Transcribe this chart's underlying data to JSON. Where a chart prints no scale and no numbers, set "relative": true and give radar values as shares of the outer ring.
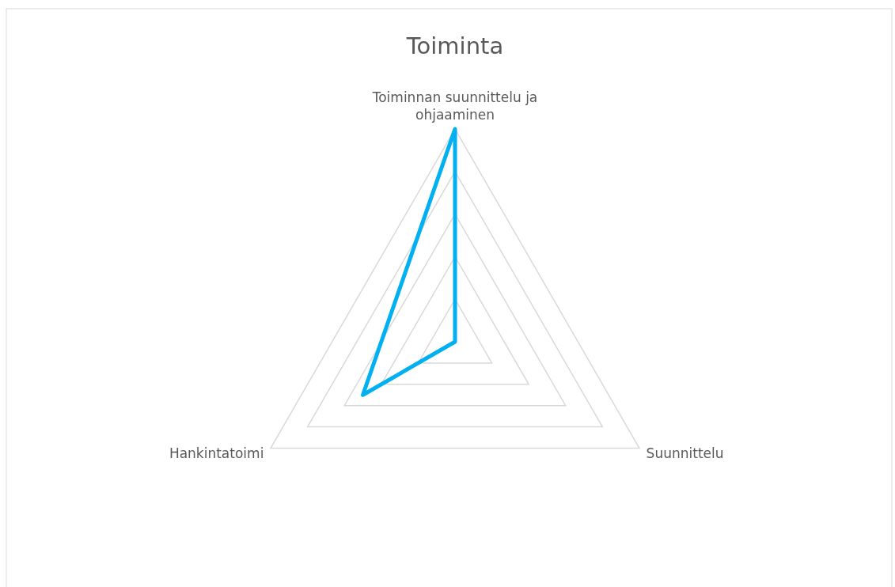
{
  "chart_data": {
    "type": "radar",
    "title": "Toiminta",
    "categories": [
      "Toiminnan suunnittelu ja ohjaaminen",
      "Suunnittelu",
      "Hankintatoimi"
    ],
    "series": [
      {
        "color": "#00b0f0",
        "values": [
          1,
          0,
          0.5
        ]
      }
    ],
    "relative": true,
    "grid": true,
    "marker": "none",
    "line_style": "solid"
  }
}
